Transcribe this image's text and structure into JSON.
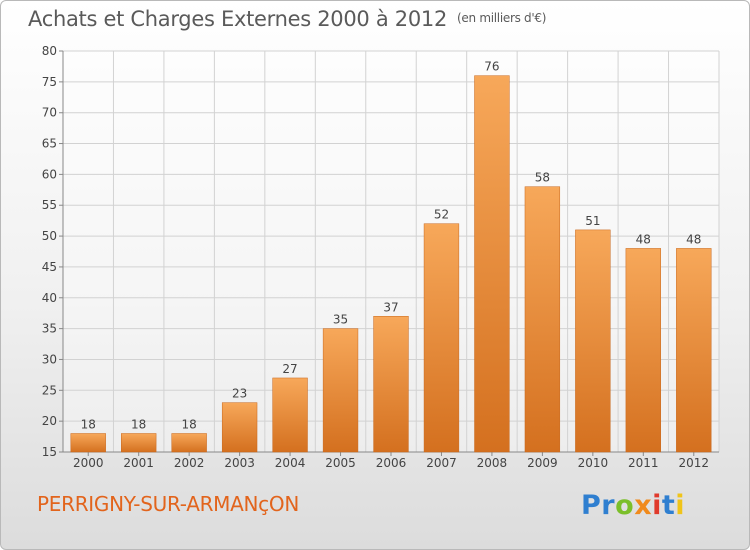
{
  "header": {
    "title": "Achats et Charges Externes 2000 à 2012",
    "unit": "(en milliers d'€)"
  },
  "footer": {
    "place": "PERRIGNY-SUR-ARMANçON",
    "logo_letters": [
      {
        "ch": "P",
        "color": "#2f7fd0"
      },
      {
        "ch": "r",
        "color": "#2f7fd0"
      },
      {
        "ch": "o",
        "color": "#7bbf2a"
      },
      {
        "ch": "x",
        "color": "#f08a1c"
      },
      {
        "ch": "i",
        "color": "#e03a2c"
      },
      {
        "ch": "t",
        "color": "#2f7fd0"
      },
      {
        "ch": "i",
        "color": "#f0c419"
      }
    ]
  },
  "colors": {
    "bar_top": "#f7a85a",
    "bar_bottom": "#d4701f",
    "grid": "#d2d2d2",
    "axis_text": "#444444",
    "place_text": "#e2641c"
  },
  "chart_data": {
    "type": "bar",
    "title": "Achats et Charges Externes 2000 à 2012",
    "subtitle": "(en milliers d'€)",
    "categories": [
      "2000",
      "2001",
      "2002",
      "2003",
      "2004",
      "2005",
      "2006",
      "2007",
      "2008",
      "2009",
      "2010",
      "2011",
      "2012"
    ],
    "values": [
      18,
      18,
      18,
      23,
      27,
      35,
      37,
      52,
      76,
      58,
      51,
      48,
      48
    ],
    "ylim": [
      15,
      80
    ],
    "yticks": [
      15,
      20,
      25,
      30,
      35,
      40,
      45,
      50,
      55,
      60,
      65,
      70,
      75,
      80
    ],
    "grid": true,
    "data_labels": true
  }
}
